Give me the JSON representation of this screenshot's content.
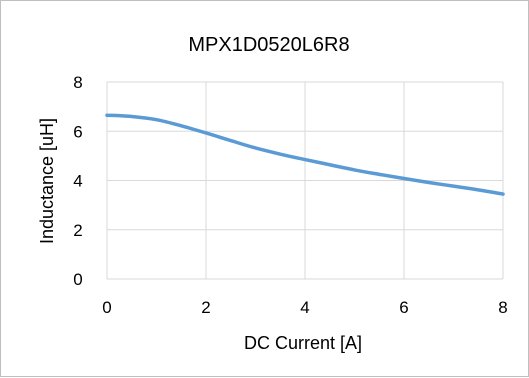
{
  "chart_data": {
    "type": "line",
    "title": "MPX1D0520L6R8",
    "xlabel": "DC Current [A]",
    "ylabel": "Inductance [uH]",
    "xlim": [
      0,
      8
    ],
    "ylim": [
      0,
      8
    ],
    "xticks": [
      "0",
      "2",
      "4",
      "6",
      "8"
    ],
    "yticks": [
      "0",
      "2",
      "4",
      "6",
      "8"
    ],
    "grid": true,
    "legend": "none",
    "line_color": "#5b9bd5",
    "grid_color": "#d9d9d9",
    "series": [
      {
        "x": [
          0,
          0.5,
          1.0,
          1.5,
          2.0,
          2.5,
          3.0,
          3.5,
          4.0,
          4.5,
          5.0,
          5.5,
          6.0,
          6.5,
          7.0,
          7.5,
          8.0
        ],
        "y": [
          6.65,
          6.6,
          6.47,
          6.22,
          5.93,
          5.62,
          5.32,
          5.07,
          4.85,
          4.64,
          4.43,
          4.25,
          4.08,
          3.92,
          3.77,
          3.62,
          3.45
        ]
      }
    ]
  }
}
